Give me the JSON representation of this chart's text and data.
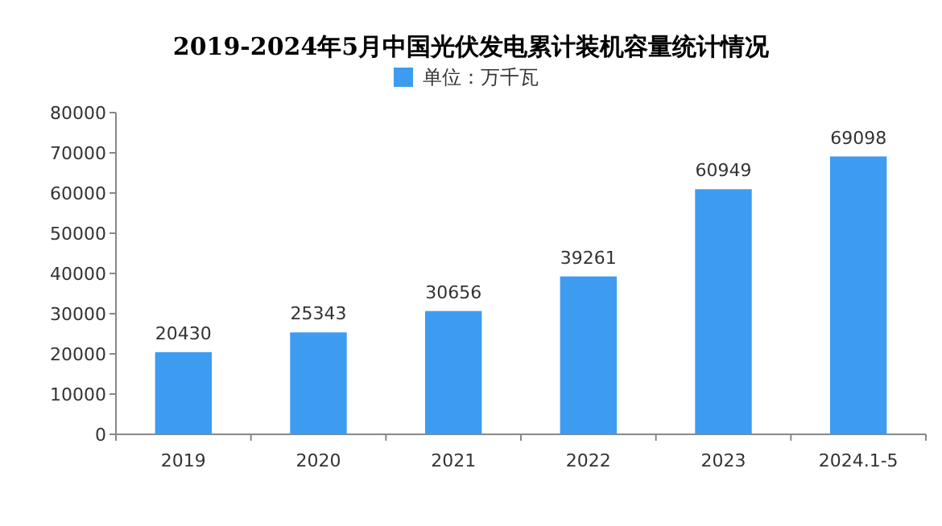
{
  "chart_data": {
    "type": "bar",
    "title": "2019-2024年5月中国光伏发电累计装机容量统计情况",
    "categories": [
      "2019",
      "2020",
      "2021",
      "2022",
      "2023",
      "2024.1-5"
    ],
    "series": [
      {
        "name": "单位：万千瓦",
        "color": "#3d9cf0",
        "values": [
          20430,
          25343,
          30656,
          39261,
          60949,
          69098
        ]
      }
    ],
    "ylim": [
      0,
      80000
    ],
    "yticks": [
      0,
      10000,
      20000,
      30000,
      40000,
      50000,
      60000,
      70000,
      80000
    ],
    "data_labels": true,
    "legend": "top"
  }
}
